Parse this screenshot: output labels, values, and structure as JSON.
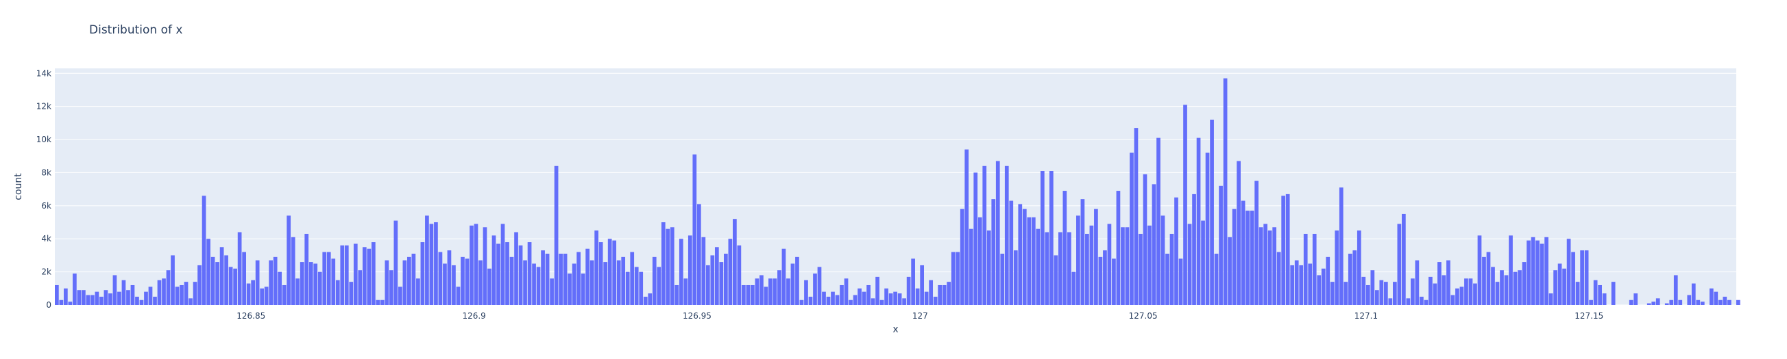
{
  "chart_data": {
    "type": "bar",
    "title": "Distribution of x",
    "xlabel": "x",
    "ylabel": "count",
    "xlim": [
      126.806,
      127.183
    ],
    "ylim": [
      0,
      14300
    ],
    "x_ticks": [
      {
        "value": 126.85,
        "label": "126.85"
      },
      {
        "value": 126.9,
        "label": "126.9"
      },
      {
        "value": 126.95,
        "label": "126.95"
      },
      {
        "value": 127.0,
        "label": "127"
      },
      {
        "value": 127.05,
        "label": "127.05"
      },
      {
        "value": 127.1,
        "label": "127.1"
      },
      {
        "value": 127.15,
        "label": "127.15"
      }
    ],
    "y_ticks": [
      {
        "value": 0,
        "label": "0"
      },
      {
        "value": 2000,
        "label": "2k"
      },
      {
        "value": 4000,
        "label": "4k"
      },
      {
        "value": 6000,
        "label": "6k"
      },
      {
        "value": 8000,
        "label": "8k"
      },
      {
        "value": 10000,
        "label": "10k"
      },
      {
        "value": 12000,
        "label": "12k"
      },
      {
        "value": 14000,
        "label": "14k"
      }
    ],
    "grid": true,
    "bin_start": 126.806,
    "bin_width": 0.001,
    "counts": [
      1200,
      300,
      1000,
      200,
      1900,
      900,
      900,
      600,
      600,
      800,
      500,
      900,
      700,
      1800,
      800,
      1500,
      900,
      1200,
      500,
      300,
      800,
      1100,
      500,
      1500,
      1600,
      2100,
      3000,
      1100,
      1200,
      1400,
      400,
      1400,
      2400,
      6600,
      4000,
      2900,
      2600,
      3500,
      3000,
      2300,
      2200,
      4400,
      3200,
      1300,
      1500,
      2700,
      1000,
      1100,
      2700,
      2900,
      2000,
      1200,
      5400,
      4100,
      1600,
      2600,
      4300,
      2600,
      2500,
      2000,
      3200,
      3200,
      2800,
      1500,
      3600,
      3600,
      1400,
      3700,
      2100,
      3500,
      3400,
      3800,
      300,
      300,
      2700,
      2100,
      5100,
      1100,
      2700,
      2900,
      3100,
      1600,
      3800,
      5400,
      4900,
      5000,
      3200,
      2500,
      3300,
      2400,
      1100,
      2900,
      2800,
      4800,
      4900,
      2700,
      4700,
      2200,
      4200,
      3700,
      4900,
      3800,
      2900,
      4400,
      3600,
      2700,
      3800,
      2500,
      2300,
      3300,
      3100,
      1600,
      8400,
      3100,
      3100,
      1900,
      2500,
      3200,
      1900,
      3400,
      2700,
      4500,
      3800,
      2600,
      4000,
      3900,
      2700,
      2900,
      2000,
      3200,
      2300,
      2000,
      500,
      700,
      2900,
      2300,
      5000,
      4600,
      4700,
      1200,
      4000,
      1600,
      4200,
      9100,
      6100,
      4100,
      2400,
      3000,
      3500,
      2600,
      3100,
      4000,
      5200,
      3600,
      1200,
      1200,
      1200,
      1600,
      1800,
      1100,
      1600,
      1600,
      2100,
      3400,
      1600,
      2500,
      2900,
      300,
      1500,
      500,
      1900,
      2300,
      800,
      500,
      800,
      600,
      1200,
      1600,
      300,
      600,
      1000,
      800,
      1200,
      400,
      1700,
      300,
      1000,
      700,
      800,
      700,
      400,
      1700,
      2800,
      1000,
      2400,
      800,
      1500,
      500,
      1200,
      1200,
      1400,
      3200,
      3200,
      5800,
      9400,
      4600,
      8000,
      5300,
      8400,
      4500,
      6400,
      8700,
      3100,
      8400,
      6300,
      3300,
      6100,
      5800,
      5300,
      5300,
      4600,
      8100,
      4400,
      8100,
      3000,
      4400,
      6900,
      4400,
      2000,
      5400,
      6400,
      4300,
      4800,
      5800,
      2900,
      3300,
      4900,
      2800,
      6900,
      4700,
      4700,
      9200,
      10700,
      4300,
      7900,
      4800,
      7300,
      10100,
      5400,
      3100,
      4300,
      6500,
      2800,
      12100,
      4900,
      6700,
      10100,
      5100,
      9200,
      11200,
      3100,
      7200,
      13700,
      4100,
      5800,
      8700,
      6300,
      5700,
      5700,
      7500,
      4700,
      4900,
      4500,
      4700,
      3200,
      6600,
      6700,
      2400,
      2700,
      2400,
      4300,
      2500,
      4300,
      1800,
      2200,
      2900,
      1400,
      4500,
      7100,
      1400,
      3100,
      3300,
      4500,
      1700,
      1200,
      2100,
      900,
      1500,
      1400,
      400,
      1400,
      4900,
      5500,
      400,
      1600,
      2700,
      500,
      300,
      1700,
      1300,
      2600,
      1800,
      2700,
      600,
      1000,
      1100,
      1600,
      1600,
      1300,
      4200,
      2900,
      3200,
      2300,
      1400,
      2100,
      1800,
      4200,
      2000,
      2100,
      2600,
      3900,
      4100,
      3900,
      3700,
      4100,
      700,
      2100,
      2500,
      2200,
      4000,
      3200,
      1400,
      3300,
      3300,
      300,
      1500,
      1200,
      700,
      0,
      1400,
      0,
      0,
      0,
      300,
      700,
      0,
      0,
      100,
      200,
      400,
      0,
      100,
      300,
      1800,
      300,
      0,
      600,
      1300,
      300,
      200,
      0,
      1000,
      800,
      300,
      500,
      300,
      0,
      300
    ]
  }
}
